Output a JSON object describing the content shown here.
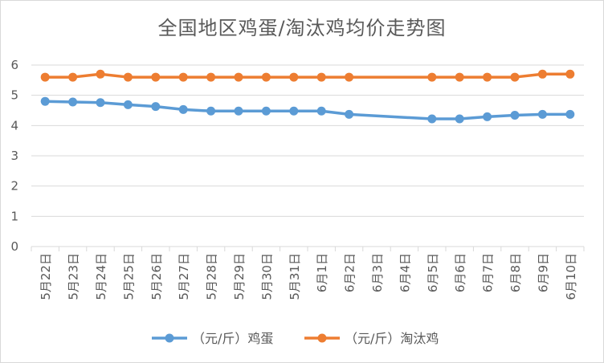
{
  "chart_data": {
    "type": "line",
    "title": "全国地区鸡蛋/淘汰鸡均价走势图",
    "xlabel": "",
    "ylabel": "",
    "ylim": [
      0,
      6
    ],
    "yticks": [
      0,
      1,
      2,
      3,
      4,
      5,
      6
    ],
    "grid": "horizontal",
    "legend_position": "bottom",
    "categories": [
      "5月22日",
      "5月23日",
      "5月24日",
      "5月25日",
      "5月26日",
      "5月27日",
      "5月28日",
      "5月29日",
      "5月30日",
      "5月31日",
      "6月1日",
      "6月2日",
      "6月3日",
      "6月4日",
      "6月5日",
      "6月6日",
      "6月7日",
      "6月8日",
      "6月9日",
      "6月10日"
    ],
    "series": [
      {
        "name": "（元/斤）鸡蛋",
        "color": "#5b9bd5",
        "values": [
          4.8,
          4.78,
          4.76,
          4.69,
          4.63,
          4.53,
          4.48,
          4.48,
          4.48,
          4.48,
          4.48,
          4.37,
          null,
          null,
          4.22,
          4.22,
          4.29,
          4.34,
          4.37,
          4.37
        ]
      },
      {
        "name": "（元/斤）淘汰鸡",
        "color": "#ed7d31",
        "values": [
          5.6,
          5.6,
          5.7,
          5.6,
          5.6,
          5.6,
          5.6,
          5.6,
          5.6,
          5.6,
          5.6,
          5.6,
          null,
          null,
          5.6,
          5.6,
          5.6,
          5.6,
          5.7,
          5.7
        ]
      }
    ]
  }
}
